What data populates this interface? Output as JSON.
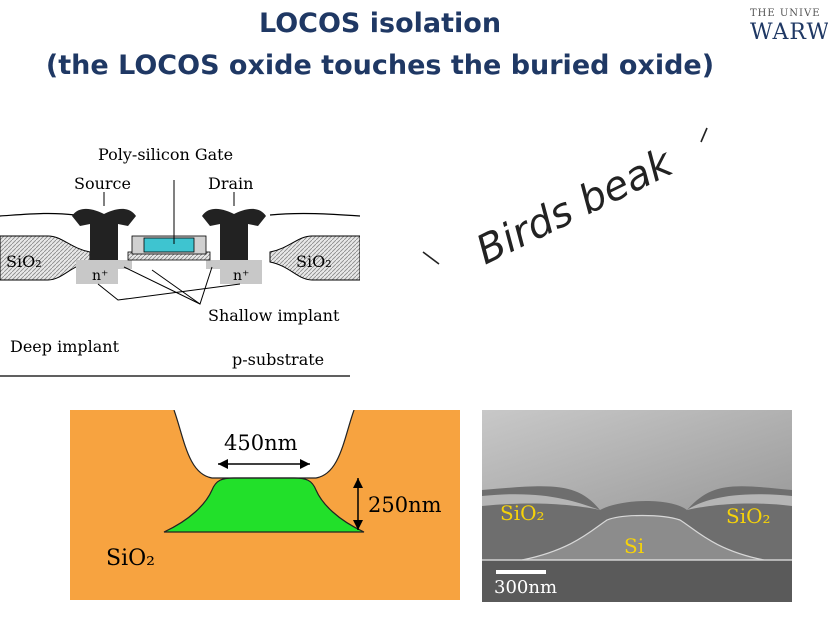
{
  "header": {
    "title_line1": "LOCOS isolation",
    "title_line2": "(the LOCOS oxide touches the buried oxide)",
    "logo_line1": "THE UNIVE",
    "logo_line2": "WARW"
  },
  "mosfet_diagram": {
    "gate_label": "Poly-silicon Gate",
    "source_label": "Source",
    "drain_label": "Drain",
    "sio2_left": "SiO₂",
    "sio2_right": "SiO₂",
    "n_left": "n⁺",
    "n_right": "n⁺",
    "shallow_label": "Shallow implant",
    "deep_label": "Deep implant",
    "substrate_label": "p-substrate"
  },
  "annotation": {
    "handwritten": "Birds beak"
  },
  "schematic": {
    "width_label": "450nm",
    "height_label": "250nm",
    "oxide_label": "SiO₂",
    "colors": {
      "oxide": "#f7a340",
      "silicon": "#22e02a"
    }
  },
  "sem_image": {
    "sio2_left": "SiO₂",
    "si_label": "Si",
    "sio2_right": "SiO₂",
    "scale_label": "300nm"
  }
}
